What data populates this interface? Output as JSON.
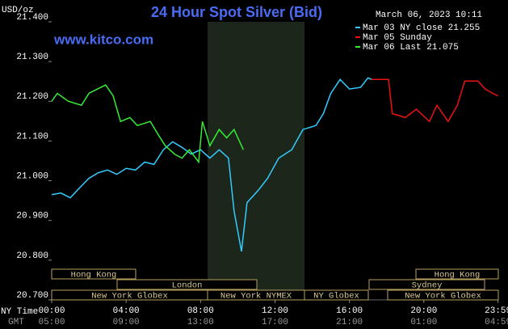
{
  "chart_data": {
    "type": "line",
    "title": "24 Hour Spot Silver (Bid)",
    "unit": "USD/oz",
    "website": "www.kitco.com",
    "timestamp": "March 06, 2023 10:11",
    "x_axis_labels": [
      "NY Time",
      "GMT"
    ],
    "ylim": [
      20.7,
      21.4
    ],
    "yticks": [
      {
        "value": 20.7,
        "label": "20.700"
      },
      {
        "value": 20.8,
        "label": "20.800"
      },
      {
        "value": 20.9,
        "label": "20.900"
      },
      {
        "value": 21.0,
        "label": "21.000"
      },
      {
        "value": 21.1,
        "label": "21.100"
      },
      {
        "value": 21.2,
        "label": "21.200"
      },
      {
        "value": 21.3,
        "label": "21.300"
      },
      {
        "value": 21.4,
        "label": "21.400"
      }
    ],
    "xlim": [
      0,
      24
    ],
    "xticks": [
      {
        "value": 0,
        "label": "00:00"
      },
      {
        "value": 4,
        "label": "04:00"
      },
      {
        "value": 8,
        "label": "08:00"
      },
      {
        "value": 12,
        "label": "12:00"
      },
      {
        "value": 16,
        "label": "16:00"
      },
      {
        "value": 20,
        "label": "20:00"
      },
      {
        "value": 23.983,
        "label": "23:59"
      }
    ],
    "gmt_ticks": [
      "05:00",
      "09:00",
      "13:00",
      "17:00",
      "21:00",
      "01:00",
      "04:59"
    ],
    "sessions": [
      "Hong Kong",
      "London",
      "New York Globex",
      "New York NYMEX",
      "NY Globex",
      "Hong Kong",
      "Sydney",
      "New York Globex"
    ],
    "series": [
      {
        "name": "Mar 03 NY close 21.255",
        "color": "#33ccff",
        "x": [
          0,
          0.5,
          1,
          1.5,
          2,
          2.5,
          3,
          3.5,
          4,
          4.5,
          5,
          5.5,
          6,
          6.5,
          7,
          7.5,
          8,
          8.5,
          9,
          9.5,
          9.8,
          10.2,
          10.5,
          11.1,
          11.6,
          12.2,
          12.9,
          13.5,
          14.2,
          14.6,
          15,
          15.5,
          16,
          16.6,
          17,
          17.2
        ],
        "values": [
          20.965,
          20.969,
          20.957,
          20.982,
          21.006,
          21.02,
          21.027,
          21.016,
          21.031,
          21.027,
          21.047,
          21.041,
          21.078,
          21.098,
          21.084,
          21.067,
          21.078,
          21.057,
          21.078,
          21.057,
          20.924,
          20.822,
          20.945,
          20.976,
          21.006,
          21.057,
          21.078,
          21.129,
          21.139,
          21.169,
          21.22,
          21.255,
          21.231,
          21.235,
          21.259,
          21.255
        ]
      },
      {
        "name": "Mar 05 Sunday",
        "color": "#ee1111",
        "x": [
          17.2,
          18.1,
          18.3,
          19,
          19.6,
          20.3,
          20.7,
          21.3,
          21.8,
          22.2,
          22.9,
          23.3,
          23.7,
          23.98
        ],
        "values": [
          21.255,
          21.255,
          21.169,
          21.159,
          21.18,
          21.149,
          21.19,
          21.149,
          21.19,
          21.251,
          21.251,
          21.231,
          21.22,
          21.214
        ]
      },
      {
        "name": "Mar 06 Last 21.075",
        "color": "#33ee33",
        "x": [
          0,
          0.3,
          0.9,
          1.6,
          2,
          2.9,
          3.3,
          3.7,
          4.2,
          4.6,
          5.3,
          5.7,
          6.1,
          6.6,
          7,
          7.4,
          7.9,
          8.1,
          8.5,
          9,
          9.4,
          9.8,
          10.3
        ],
        "values": [
          21.2,
          21.22,
          21.2,
          21.19,
          21.22,
          21.241,
          21.214,
          21.149,
          21.159,
          21.139,
          21.149,
          21.118,
          21.088,
          21.067,
          21.057,
          21.078,
          21.047,
          21.149,
          21.088,
          21.129,
          21.108,
          21.129,
          21.078
        ]
      }
    ]
  }
}
